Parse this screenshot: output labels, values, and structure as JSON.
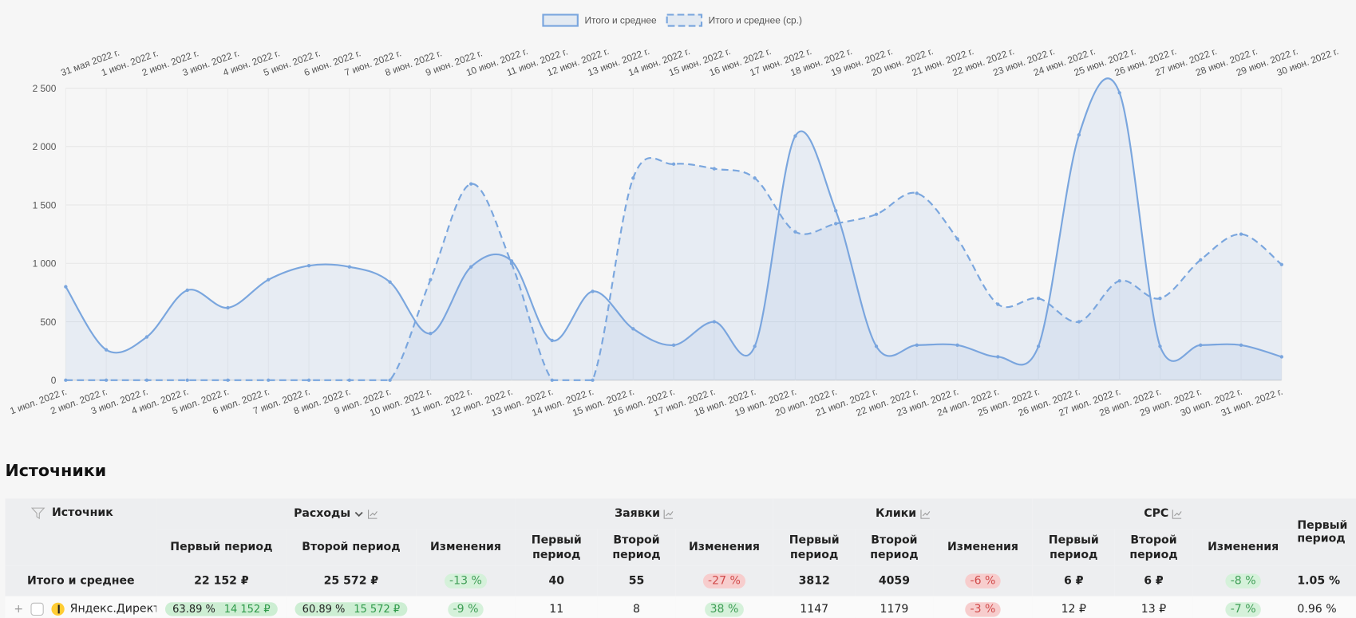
{
  "chart_data": {
    "type": "line",
    "legend_position": "top",
    "grid": true,
    "ylim": [
      0,
      2500
    ],
    "yticks": [
      0,
      500,
      {
        "value": 1000,
        "label": "1 000"
      },
      {
        "value": 1500,
        "label": "1 500"
      },
      {
        "value": 2000,
        "label": "2 000"
      },
      {
        "value": 2500,
        "label": "2 500"
      }
    ],
    "categories": [
      "1 июл. 2022 г.",
      "2 июл. 2022 г.",
      "3 июл. 2022 г.",
      "4 июл. 2022 г.",
      "5 июл. 2022 г.",
      "6 июл. 2022 г.",
      "7 июл. 2022 г.",
      "8 июл. 2022 г.",
      "9 июл. 2022 г.",
      "10 июл. 2022 г.",
      "11 июл. 2022 г.",
      "12 июл. 2022 г.",
      "13 июл. 2022 г.",
      "14 июл. 2022 г.",
      "15 июл. 2022 г.",
      "16 июл. 2022 г.",
      "17 июл. 2022 г.",
      "18 июл. 2022 г.",
      "19 июл. 2022 г.",
      "20 июл. 2022 г.",
      "21 июл. 2022 г.",
      "22 июл. 2022 г.",
      "23 июл. 2022 г.",
      "24 июл. 2022 г.",
      "25 июл. 2022 г.",
      "26 июл. 2022 г.",
      "27 июл. 2022 г.",
      "28 июл. 2022 г.",
      "29 июл. 2022 г.",
      "30 июл. 2022 г.",
      "31 июл. 2022 г."
    ],
    "categories_top": [
      "31 мая 2022 г.",
      "1 июн. 2022 г.",
      "2 июн. 2022 г.",
      "3 июн. 2022 г.",
      "4 июн. 2022 г.",
      "5 июн. 2022 г.",
      "6 июн. 2022 г.",
      "7 июн. 2022 г.",
      "8 июн. 2022 г.",
      "9 июн. 2022 г.",
      "10 июн. 2022 г.",
      "11 июн. 2022 г.",
      "12 июн. 2022 г.",
      "13 июн. 2022 г.",
      "14 июн. 2022 г.",
      "15 июн. 2022 г.",
      "16 июн. 2022 г.",
      "17 июн. 2022 г.",
      "18 июн. 2022 г.",
      "19 июн. 2022 г.",
      "20 июн. 2022 г.",
      "21 июн. 2022 г.",
      "22 июн. 2022 г.",
      "23 июн. 2022 г.",
      "24 июн. 2022 г.",
      "25 июн. 2022 г.",
      "26 июн. 2022 г.",
      "27 июн. 2022 г.",
      "28 июн. 2022 г.",
      "29 июн. 2022 г.",
      "30 июн. 2022 г."
    ],
    "series": [
      {
        "name": "Итого и среднее",
        "color": "#7aa6de",
        "dashed": false,
        "values": [
          800,
          260,
          370,
          770,
          620,
          860,
          980,
          970,
          840,
          400,
          970,
          1020,
          340,
          760,
          440,
          300,
          500,
          290,
          2090,
          1450,
          290,
          300,
          300,
          200,
          290,
          2100,
          2460,
          290,
          300,
          300,
          200
        ]
      },
      {
        "name": "Итого и среднее (ср.)",
        "color": "#7aa6de",
        "dashed": true,
        "values": [
          0,
          0,
          0,
          0,
          0,
          0,
          0,
          0,
          0,
          860,
          1680,
          1000,
          0,
          0,
          1730,
          1850,
          1810,
          1730,
          1270,
          1340,
          1420,
          1600,
          1210,
          650,
          700,
          500,
          850,
          700,
          1030,
          1250,
          990
        ]
      }
    ]
  },
  "sources": {
    "title": "Источники",
    "columns": [
      "Источник",
      "Расходы",
      "Заявки",
      "Клики",
      "CPC",
      "Первый период"
    ],
    "subcolumns": [
      "Первый период",
      "Второй период",
      "Изменения"
    ],
    "rows": [
      [
        "Итого и среднее",
        "22 152 ₽",
        "25 572 ₽",
        {
          "text": "-13 %",
          "tone": "green"
        },
        "40",
        "55",
        {
          "text": "-27 %",
          "tone": "red"
        },
        "3812",
        "4059",
        {
          "text": "-6 %",
          "tone": "red"
        },
        "6 ₽",
        "6 ₽",
        {
          "text": "-8 %",
          "tone": "green"
        },
        "1.05 %"
      ],
      [
        "Яндекс.Директ",
        {
          "share": "63.89 %",
          "text": "14 152 ₽"
        },
        {
          "share": "60.89 %",
          "text": "15 572 ₽"
        },
        {
          "text": "-9 %",
          "tone": "green"
        },
        "11",
        "8",
        {
          "text": "38 %",
          "tone": "green"
        },
        "1147",
        "1179",
        {
          "text": "-3 %",
          "tone": "red"
        },
        "12 ₽",
        "13 ₽",
        {
          "text": "-7 %",
          "tone": "green"
        },
        "0.96 %"
      ]
    ]
  }
}
